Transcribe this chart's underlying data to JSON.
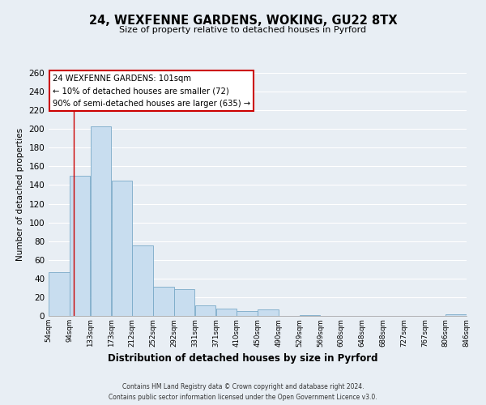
{
  "title_line1": "24, WEXFENNE GARDENS, WOKING, GU22 8TX",
  "title_line2": "Size of property relative to detached houses in Pyrford",
  "xlabel": "Distribution of detached houses by size in Pyrford",
  "ylabel": "Number of detached properties",
  "bar_edges": [
    54,
    94,
    133,
    173,
    212,
    252,
    292,
    331,
    371,
    410,
    450,
    490,
    529,
    569,
    608,
    648,
    688,
    727,
    767,
    806,
    846
  ],
  "bar_heights": [
    47,
    150,
    203,
    145,
    75,
    31,
    29,
    11,
    8,
    5,
    7,
    0,
    1,
    0,
    0,
    0,
    0,
    0,
    0,
    2
  ],
  "bar_fill_color": "#c8ddef",
  "bar_edge_color": "#7aaac8",
  "bg_color": "#e8eef4",
  "plot_bg_color": "#e8eef4",
  "grid_color": "#ffffff",
  "vline_x": 101,
  "vline_color": "#cc0000",
  "annotation_text": "24 WEXFENNE GARDENS: 101sqm\n← 10% of detached houses are smaller (72)\n90% of semi-detached houses are larger (635) →",
  "annotation_box_color": "#ffffff",
  "annotation_box_edge": "#cc0000",
  "ylim": [
    0,
    260
  ],
  "yticks": [
    0,
    20,
    40,
    60,
    80,
    100,
    120,
    140,
    160,
    180,
    200,
    220,
    240,
    260
  ],
  "tick_labels": [
    "54sqm",
    "94sqm",
    "133sqm",
    "173sqm",
    "212sqm",
    "252sqm",
    "292sqm",
    "331sqm",
    "371sqm",
    "410sqm",
    "450sqm",
    "490sqm",
    "529sqm",
    "569sqm",
    "608sqm",
    "648sqm",
    "688sqm",
    "727sqm",
    "767sqm",
    "806sqm",
    "846sqm"
  ],
  "footer_line1": "Contains HM Land Registry data © Crown copyright and database right 2024.",
  "footer_line2": "Contains public sector information licensed under the Open Government Licence v3.0."
}
